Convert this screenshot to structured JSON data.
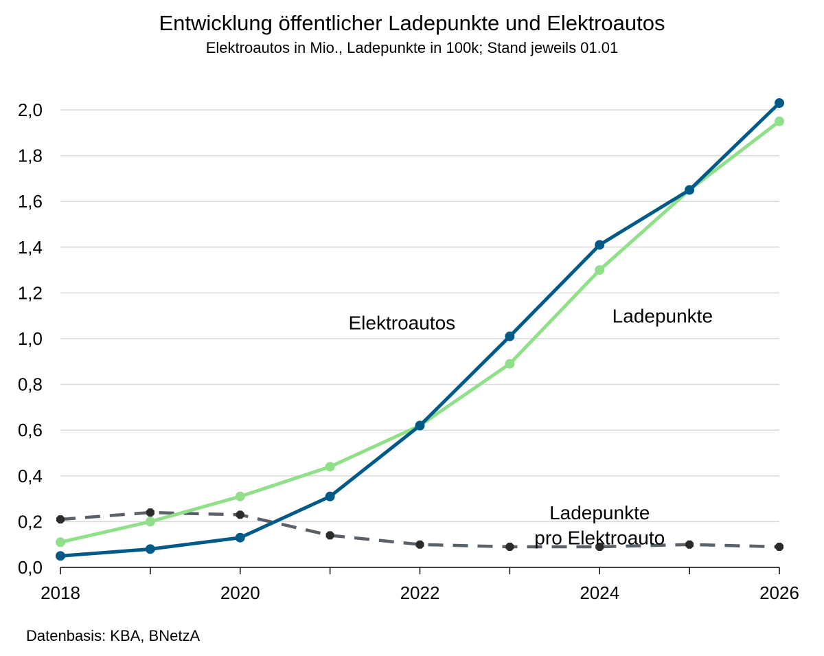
{
  "chart_data": {
    "type": "line",
    "title": "Entwicklung öffentlicher Ladepunkte und Elektroautos",
    "subtitle": "Elektroautos in Mio., Ladepunkte in 100k; Stand jeweils 01.01",
    "x": [
      2018,
      2019,
      2020,
      2021,
      2022,
      2023,
      2024,
      2025,
      2026
    ],
    "x_tick_labels": [
      "2018",
      "2020",
      "2022",
      "2024",
      "2026"
    ],
    "y_tick_labels": [
      "0,0",
      "0,2",
      "0,4",
      "0,6",
      "0,8",
      "1,0",
      "1,2",
      "1,4",
      "1,6",
      "1,8",
      "2,0"
    ],
    "ylim": [
      0,
      2.0
    ],
    "xlim": [
      2018,
      2026
    ],
    "grid": "horizontal",
    "series": [
      {
        "name": "Elektroautos",
        "color": "#005a87",
        "style": "solid",
        "values": [
          0.05,
          0.08,
          0.13,
          0.31,
          0.62,
          1.01,
          1.41,
          1.65,
          2.03
        ]
      },
      {
        "name": "Ladepunkte",
        "color": "#90e08a",
        "style": "solid",
        "values": [
          0.11,
          0.2,
          0.31,
          0.44,
          0.62,
          0.89,
          1.3,
          1.65,
          1.95
        ]
      },
      {
        "name": "Ladepunkte pro Elektroauto",
        "color": "#5a6169",
        "style": "dashed",
        "values": [
          0.21,
          0.24,
          0.23,
          0.14,
          0.1,
          0.09,
          0.09,
          0.1,
          0.09
        ]
      }
    ],
    "annotations": [
      {
        "text": "Elektroautos",
        "x": 2021.8,
        "y": 1.04
      },
      {
        "text": "Ladepunkte",
        "x": 2024.7,
        "y": 1.07
      },
      {
        "text": "Ladepunkte",
        "x": 2024.0,
        "y": 0.21
      },
      {
        "text": "pro Elektroauto",
        "x": 2024.0,
        "y": 0.1
      }
    ],
    "source": "Datenbasis: KBA, BNetzA"
  }
}
